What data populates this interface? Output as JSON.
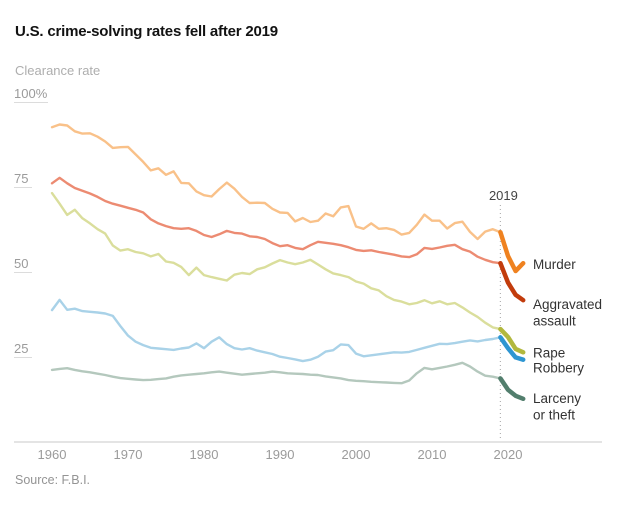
{
  "header": {
    "title": "U.S. crime-solving rates fell after 2019",
    "axis_unit_label": "Clearance rate"
  },
  "footer": {
    "source": "Source: F.B.I."
  },
  "colors": {
    "background": "#ffffff",
    "title_text": "#121212",
    "muted_text": "#aeaeae",
    "axis_text": "#9b9b9b",
    "axis_line": "#c9c9c9",
    "tick_line": "#dcdcdc",
    "annotation_text": "#444444",
    "annotation_line": "#b3b3b3",
    "series_label_text": "#333333"
  },
  "chart_data": {
    "type": "line",
    "title": "U.S. crime-solving rates fell after 2019",
    "ylabel": "Clearance rate",
    "xlabel": "",
    "ylim": [
      0,
      100
    ],
    "xlim": [
      1960,
      2022
    ],
    "grid": false,
    "legend_position": "right-of-line-ends",
    "year_start": 1960,
    "highlight_from_year": 2019,
    "annotation": {
      "year": 2019,
      "label": "2019",
      "style": "dotted-vertical-line"
    },
    "y_ticks": [
      {
        "value": 100,
        "label": "100%"
      },
      {
        "value": 75,
        "label": "75"
      },
      {
        "value": 50,
        "label": "50"
      },
      {
        "value": 25,
        "label": "25"
      }
    ],
    "x_ticks": [
      {
        "value": 1960,
        "label": "1960"
      },
      {
        "value": 1970,
        "label": "1970"
      },
      {
        "value": 1980,
        "label": "1980"
      },
      {
        "value": 1990,
        "label": "1990"
      },
      {
        "value": 2000,
        "label": "2000"
      },
      {
        "value": 2010,
        "label": "2010"
      },
      {
        "value": 2020,
        "label": "2020"
      }
    ],
    "series": [
      {
        "name": "Murder",
        "label_lines": [
          "Murder"
        ],
        "color_light": "#f9c189",
        "color_bold": "#ef8220",
        "values": [
          92.3,
          93.1,
          92.8,
          91.1,
          90.4,
          90.5,
          89.5,
          88.1,
          86.2,
          86.4,
          86.5,
          84.3,
          82.1,
          79.6,
          80.2,
          78.3,
          79.3,
          75.9,
          75.8,
          73.4,
          72.3,
          71.9,
          74.1,
          76.0,
          74.2,
          71.8,
          70.0,
          70.1,
          70.0,
          68.3,
          67.2,
          67.1,
          64.6,
          65.6,
          64.4,
          64.8,
          66.9,
          66.1,
          68.7,
          69.1,
          63.1,
          62.4,
          64.0,
          62.4,
          62.6,
          62.1,
          60.7,
          61.2,
          63.6,
          66.6,
          64.8,
          64.8,
          62.5,
          64.1,
          64.5,
          61.5,
          59.4,
          61.6,
          62.3,
          61.4,
          54.4,
          50.0,
          52.3
        ]
      },
      {
        "name": "Aggravated assault",
        "label_lines": [
          "Aggravated",
          "assault"
        ],
        "color_light": "#ec8b72",
        "color_bold": "#c23c0c",
        "values": [
          75.8,
          77.4,
          75.8,
          74.4,
          73.6,
          72.8,
          71.8,
          70.6,
          69.8,
          69.2,
          68.6,
          68.0,
          67.2,
          65.2,
          64.0,
          63.2,
          62.6,
          62.4,
          62.6,
          61.8,
          60.6,
          60.0,
          60.8,
          61.8,
          61.2,
          61.0,
          60.2,
          60.0,
          59.4,
          58.2,
          57.3,
          57.6,
          56.8,
          56.4,
          57.6,
          58.6,
          58.3,
          58.0,
          57.6,
          57.0,
          56.2,
          55.9,
          56.1,
          55.6,
          55.2,
          54.8,
          54.3,
          54.1,
          54.9,
          56.8,
          56.5,
          56.9,
          57.4,
          57.7,
          56.4,
          55.7,
          54.2,
          53.3,
          52.6,
          52.3,
          46.6,
          43.0,
          41.4
        ]
      },
      {
        "name": "Rape",
        "label_lines": [
          "Rape"
        ],
        "color_light": "#dade9c",
        "color_bold": "#b2b83e",
        "values": [
          72.9,
          69.8,
          66.5,
          68.0,
          65.5,
          64.0,
          62.3,
          61.0,
          57.5,
          56.0,
          56.4,
          55.6,
          55.2,
          54.3,
          55.0,
          52.8,
          52.4,
          51.2,
          48.8,
          51.0,
          48.8,
          48.2,
          47.7,
          47.2,
          48.9,
          49.4,
          49.1,
          50.5,
          51.1,
          52.2,
          53.2,
          52.5,
          52.0,
          52.5,
          53.3,
          51.9,
          50.5,
          49.3,
          48.8,
          48.2,
          46.9,
          46.3,
          44.9,
          44.3,
          42.6,
          41.5,
          41.0,
          40.2,
          40.6,
          41.4,
          40.5,
          41.1,
          40.2,
          40.6,
          39.3,
          37.8,
          36.5,
          34.8,
          33.4,
          32.9,
          30.6,
          27.1,
          26.1
        ]
      },
      {
        "name": "Robbery",
        "label_lines": [
          "Robbery"
        ],
        "color_light": "#a9d2e8",
        "color_bold": "#2e96d2",
        "values": [
          38.5,
          41.5,
          38.6,
          38.9,
          38.2,
          38.0,
          37.8,
          37.5,
          36.8,
          33.8,
          31.0,
          29.2,
          28.2,
          27.4,
          27.2,
          27.0,
          26.8,
          27.2,
          27.5,
          28.7,
          27.3,
          29.2,
          30.5,
          28.5,
          27.3,
          26.9,
          27.3,
          26.6,
          26.1,
          25.6,
          24.8,
          24.4,
          24.0,
          23.5,
          23.9,
          24.8,
          26.3,
          26.7,
          28.4,
          28.2,
          25.7,
          24.9,
          25.2,
          25.5,
          25.8,
          26.1,
          26.0,
          26.2,
          26.8,
          27.4,
          28.0,
          28.6,
          28.5,
          28.8,
          29.2,
          29.6,
          29.3,
          29.7,
          30.0,
          30.5,
          27.3,
          24.6,
          23.9
        ]
      },
      {
        "name": "Larceny or theft",
        "label_lines": [
          "Larceny",
          "or theft"
        ],
        "color_light": "#b4c8bd",
        "color_bold": "#527e6d",
        "values": [
          20.9,
          21.2,
          21.4,
          20.9,
          20.5,
          20.2,
          19.8,
          19.4,
          18.9,
          18.5,
          18.3,
          18.1,
          17.9,
          18.0,
          18.2,
          18.4,
          18.9,
          19.3,
          19.5,
          19.7,
          19.9,
          20.2,
          20.4,
          20.1,
          19.8,
          19.5,
          19.7,
          19.9,
          20.1,
          20.4,
          20.2,
          19.9,
          19.8,
          19.7,
          19.5,
          19.4,
          19.0,
          18.7,
          18.4,
          17.9,
          17.7,
          17.6,
          17.4,
          17.3,
          17.2,
          17.1,
          17.0,
          17.8,
          19.9,
          21.5,
          21.1,
          21.5,
          21.9,
          22.4,
          23.0,
          21.9,
          20.4,
          19.2,
          18.9,
          18.4,
          15.1,
          13.3,
          12.4
        ]
      }
    ],
    "source": "Source: F.B.I."
  }
}
